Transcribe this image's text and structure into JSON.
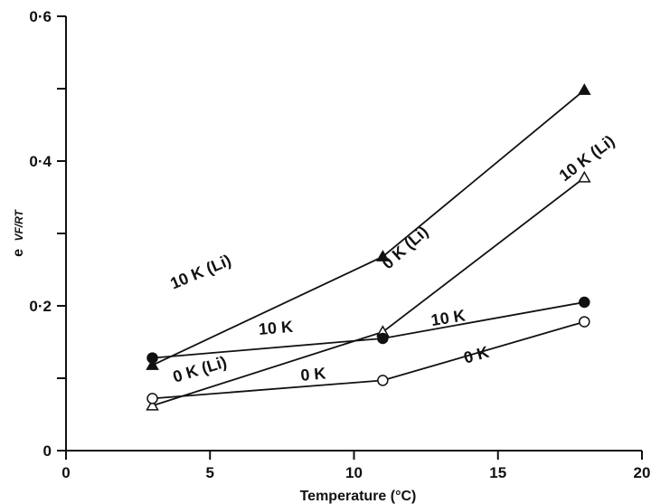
{
  "chart_data": {
    "type": "line",
    "xlabel": "Temperature (°C)",
    "ylabel_prefix": "e",
    "ylabel_exponent": "VF/RT",
    "xlim": [
      0,
      20
    ],
    "ylim": [
      0,
      0.6
    ],
    "x_ticks": [
      0,
      5,
      10,
      15,
      20
    ],
    "x_tick_labels": [
      "0",
      "5",
      "10",
      "15",
      "20"
    ],
    "y_ticks": [
      0,
      0.2,
      0.4,
      0.6
    ],
    "y_tick_labels": [
      "0",
      "0·2",
      "0·4",
      "0·6"
    ],
    "y_minor_ticks": [
      0.1,
      0.3,
      0.5
    ],
    "grid": false,
    "series": [
      {
        "name": "10 K (Li)",
        "marker": "filled-triangle",
        "x": [
          3,
          11,
          18
        ],
        "y": [
          0.118,
          0.268,
          0.498
        ]
      },
      {
        "name": "0 K (Li)",
        "marker": "open-triangle",
        "x": [
          3,
          11,
          18
        ],
        "y": [
          0.062,
          0.164,
          0.377
        ]
      },
      {
        "name": "10 K",
        "marker": "filled-circle",
        "x": [
          3,
          11,
          18
        ],
        "y": [
          0.128,
          0.155,
          0.205
        ]
      },
      {
        "name": "0 K",
        "marker": "open-circle",
        "x": [
          3,
          11,
          18
        ],
        "y": [
          0.072,
          0.097,
          0.178
        ]
      }
    ],
    "annotations": [
      {
        "text": "10 K (Li)",
        "x": 18.2,
        "y": 0.398,
        "angle": -37
      },
      {
        "text": "10 K (Li)",
        "x": 4.75,
        "y": 0.24,
        "angle": -23
      },
      {
        "text": "0 K (Li)",
        "x": 11.9,
        "y": 0.275,
        "angle": -42
      },
      {
        "text": "10 K",
        "x": 7.3,
        "y": 0.162,
        "angle": -5
      },
      {
        "text": "10 K",
        "x": 13.3,
        "y": 0.176,
        "angle": -9
      },
      {
        "text": "0 K (Li)",
        "x": 4.7,
        "y": 0.105,
        "angle": -17
      },
      {
        "text": "0 K",
        "x": 8.6,
        "y": 0.098,
        "angle": -5
      },
      {
        "text": "0 K",
        "x": 14.3,
        "y": 0.125,
        "angle": -16
      }
    ]
  }
}
